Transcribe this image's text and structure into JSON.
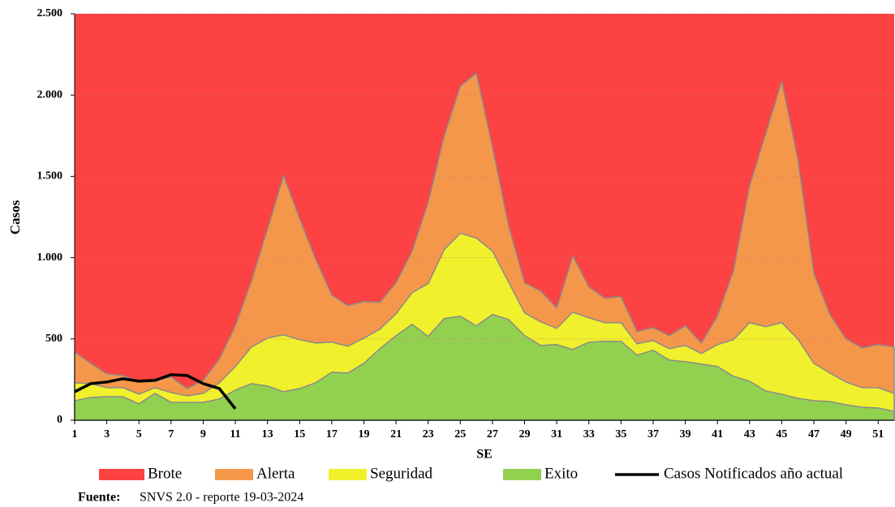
{
  "chart_data": {
    "type": "area",
    "x_label": "SE",
    "y_label": "Casos",
    "x": [
      1,
      2,
      3,
      4,
      5,
      6,
      7,
      8,
      9,
      10,
      11,
      12,
      13,
      14,
      15,
      16,
      17,
      18,
      19,
      20,
      21,
      22,
      23,
      24,
      25,
      26,
      27,
      28,
      29,
      30,
      31,
      32,
      33,
      34,
      35,
      36,
      37,
      38,
      39,
      40,
      41,
      42,
      43,
      44,
      45,
      46,
      47,
      48,
      49,
      50,
      51,
      52
    ],
    "xlim": [
      1,
      52
    ],
    "xticks": [
      1,
      3,
      5,
      7,
      9,
      11,
      13,
      15,
      17,
      19,
      21,
      23,
      25,
      27,
      29,
      31,
      33,
      35,
      37,
      39,
      41,
      43,
      45,
      47,
      49,
      51
    ],
    "ylim": [
      0,
      2500
    ],
    "yticks": [
      0,
      500,
      {
        "value": 1000,
        "label": "1.000"
      },
      {
        "value": 1500,
        "label": "1.500"
      },
      {
        "value": 2000,
        "label": "2.000"
      },
      {
        "value": 2500,
        "label": "2.500"
      }
    ],
    "grid": true,
    "background_zone": {
      "name": "Brote",
      "color": "#fc4242"
    },
    "series": [
      {
        "name": "Alerta",
        "color": "#f5974a",
        "kind": "area",
        "values": [
          420,
          350,
          285,
          275,
          235,
          245,
          265,
          195,
          245,
          375,
          580,
          855,
          1175,
          1505,
          1240,
          990,
          770,
          705,
          730,
          725,
          845,
          1040,
          1340,
          1750,
          2055,
          2135,
          1680,
          1200,
          845,
          795,
          690,
          1010,
          820,
          750,
          760,
          545,
          570,
          520,
          580,
          475,
          640,
          920,
          1440,
          1760,
          2085,
          1610,
          905,
          650,
          500,
          445,
          465,
          450
        ]
      },
      {
        "name": "Seguridad",
        "color": "#f0f02c",
        "kind": "area",
        "values": [
          230,
          225,
          200,
          200,
          160,
          200,
          170,
          150,
          165,
          230,
          330,
          450,
          505,
          525,
          495,
          475,
          480,
          455,
          505,
          560,
          655,
          785,
          840,
          1050,
          1150,
          1120,
          1040,
          850,
          660,
          605,
          565,
          665,
          630,
          600,
          600,
          470,
          490,
          440,
          460,
          410,
          465,
          495,
          600,
          575,
          600,
          500,
          350,
          290,
          235,
          200,
          200,
          165
        ]
      },
      {
        "name": "Exito",
        "color": "#92d050",
        "kind": "area",
        "values": [
          120,
          140,
          145,
          145,
          100,
          165,
          110,
          110,
          110,
          130,
          185,
          225,
          210,
          175,
          195,
          230,
          295,
          290,
          350,
          440,
          520,
          590,
          515,
          625,
          640,
          580,
          650,
          620,
          520,
          460,
          465,
          435,
          480,
          485,
          485,
          400,
          430,
          370,
          360,
          345,
          330,
          270,
          240,
          180,
          160,
          135,
          120,
          115,
          95,
          80,
          75,
          55
        ]
      },
      {
        "name": "Casos Notificados año actual",
        "color": "#000000",
        "kind": "line",
        "values": [
          175,
          225,
          235,
          255,
          240,
          245,
          280,
          275,
          225,
          195,
          70,
          null,
          null,
          null,
          null,
          null,
          null,
          null,
          null,
          null,
          null,
          null,
          null,
          null,
          null,
          null,
          null,
          null,
          null,
          null,
          null,
          null,
          null,
          null,
          null,
          null,
          null,
          null,
          null,
          null,
          null,
          null,
          null,
          null,
          null,
          null,
          null,
          null,
          null,
          null,
          null,
          null
        ]
      }
    ],
    "source": {
      "label": "Fuente:",
      "text": "SNVS 2.0 - reporte 19-03-2024"
    }
  }
}
